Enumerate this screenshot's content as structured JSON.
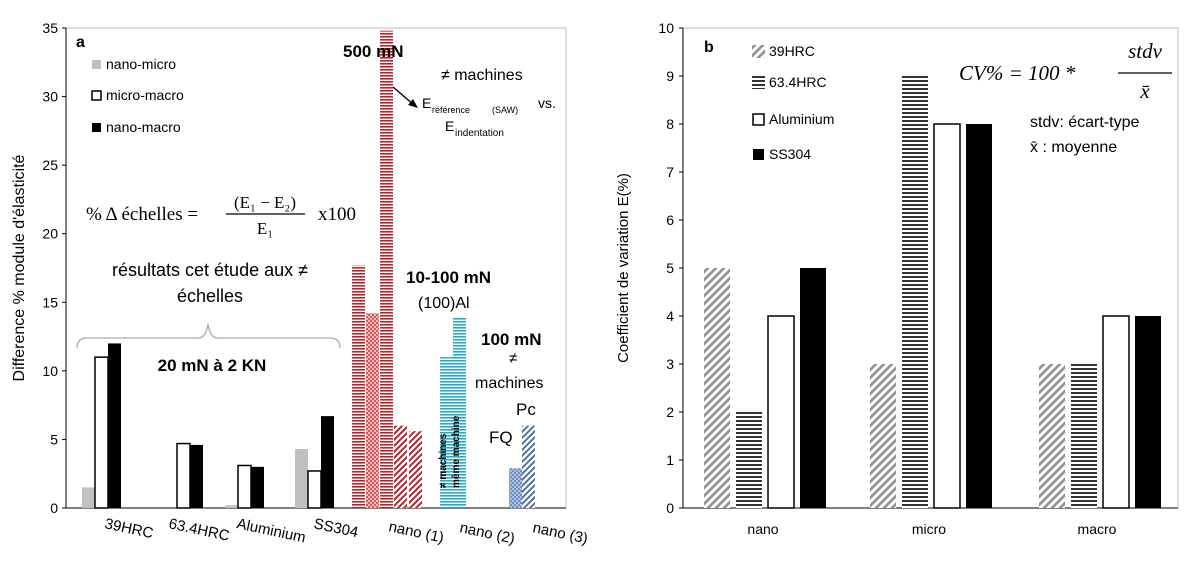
{
  "colors": {
    "light_gray": "#c0c0c0",
    "black": "#000000",
    "red": "#b8232b",
    "cyan": "#25a9c8",
    "blue": "#3f67a8",
    "hatch_gray": "#909090",
    "stripe": "#333333"
  },
  "left_labels": {
    "panel": "a",
    "ylabel": "Difference % module d'élasticité",
    "legend_nm": "nano-micro",
    "legend_mm": "micro-macro",
    "legend_nma": "nano-macro",
    "formula_lhs": "% Δ échelles =",
    "formula_num": "(E₁ − E₂)",
    "formula_den": "E₁",
    "formula_mult": "x100",
    "res_line1": "résultats cet étude aux ≠",
    "res_line2": "échelles",
    "range": "20 mN à 2 KN",
    "n500": "500 mN",
    "mach": "≠ machines",
    "eref_main": "E",
    "eref_sub": "référence",
    "eref_saw": "(SAW)",
    "vs": "vs.",
    "eind_main": "E",
    "eind_sub": "indentation",
    "n10": "10-100 mN",
    "al": "(100)Al",
    "diff_mach_vert": "≠ machines",
    "same_mach_vert": "même machine",
    "n100": "100 mN",
    "neq": "≠",
    "machines2": "machines",
    "pc": "Pc",
    "fq": "FQ"
  },
  "right_labels": {
    "panel": "b",
    "ylabel": "Coefficient de variation E(%)",
    "legend_39": "39HRC",
    "legend_63": "63.4HRC",
    "legend_al": "Aluminium",
    "legend_ss": "SS304",
    "cv_lhs": "CV% = 100 *",
    "cv_num": "stdv",
    "cv_den": "x̄",
    "stdv_def": "stdv: écart-type",
    "xbar_def": "x̄ : moyenne"
  },
  "chart_data": [
    {
      "type": "bar",
      "title": "a",
      "ylabel": "Difference % module d'élasticité",
      "ylim": [
        0,
        35
      ],
      "yticks": [
        0,
        5,
        10,
        15,
        20,
        25,
        30,
        35
      ],
      "categories": [
        "39HRC",
        "63.4HRC",
        "Aluminium",
        "SS304",
        "nano (1)",
        "nano (2)",
        "nano (3)"
      ],
      "series": [
        {
          "name": "nano-micro",
          "values": [
            1.5,
            0,
            0.2,
            4.3,
            null,
            null,
            null
          ]
        },
        {
          "name": "micro-macro",
          "values": [
            11,
            4.7,
            3.1,
            2.7,
            null,
            null,
            null
          ]
        },
        {
          "name": "nano-macro",
          "values": [
            12,
            4.6,
            3.0,
            6.7,
            null,
            null,
            null
          ]
        }
      ],
      "literature_bars": [
        {
          "group": "nano (1)",
          "values": [
            17.7,
            14.2,
            34.8,
            6.0,
            5.6
          ]
        },
        {
          "group": "nano (2)",
          "values": [
            11.0,
            13.9
          ]
        },
        {
          "group": "nano (3)",
          "values": [
            2.9,
            6.0
          ]
        }
      ]
    },
    {
      "type": "bar",
      "title": "b",
      "ylabel": "Coefficient de variation E(%)",
      "ylim": [
        0,
        10
      ],
      "yticks": [
        0,
        1,
        2,
        3,
        4,
        5,
        6,
        7,
        8,
        9,
        10
      ],
      "categories": [
        "nano",
        "micro",
        "macro"
      ],
      "series": [
        {
          "name": "39HRC",
          "values": [
            5,
            3,
            3
          ]
        },
        {
          "name": "63.4HRC",
          "values": [
            2,
            9,
            3
          ]
        },
        {
          "name": "Aluminium",
          "values": [
            4,
            8,
            4
          ]
        },
        {
          "name": "SS304",
          "values": [
            5,
            8,
            4
          ]
        }
      ]
    }
  ]
}
